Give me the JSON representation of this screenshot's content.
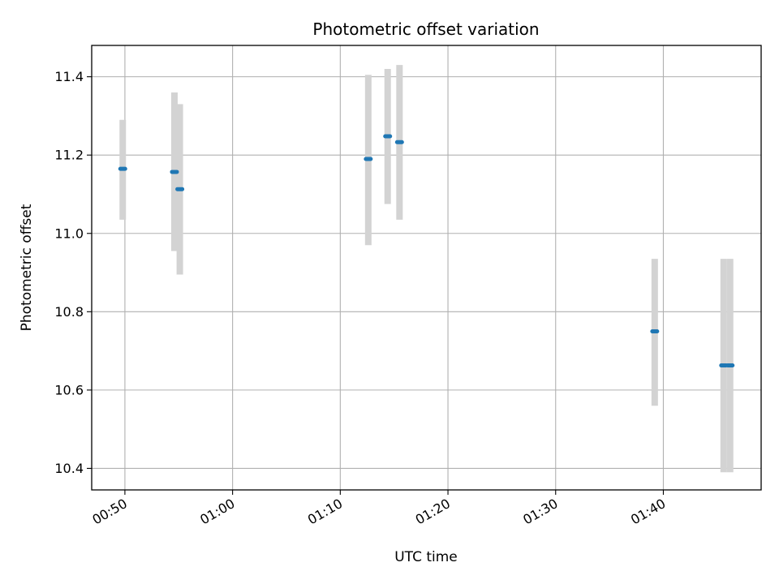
{
  "chart_data": {
    "type": "scatter",
    "title": "Photometric offset variation",
    "xlabel": "UTC time",
    "ylabel": "Photometric offset",
    "x_ticks": [
      "00:50",
      "01:00",
      "01:10",
      "01:20",
      "01:30",
      "01:40"
    ],
    "y_ticks": [
      "10.4",
      "10.6",
      "10.8",
      "11.0",
      "11.2",
      "11.4"
    ],
    "xlim": [
      "00:46:55",
      "01:49:05"
    ],
    "ylim": [
      10.345,
      11.48
    ],
    "grid": true,
    "series": [
      {
        "points": [
          {
            "x": "00:49:48",
            "y": 11.165,
            "ylow": 11.035,
            "yhigh": 11.29
          },
          {
            "x": "00:54:36",
            "y": 11.157,
            "ylow": 10.955,
            "yhigh": 11.36
          },
          {
            "x": "00:55:06",
            "y": 11.113,
            "ylow": 10.895,
            "yhigh": 11.33
          },
          {
            "x": "01:12:36",
            "y": 11.19,
            "ylow": 10.97,
            "yhigh": 11.405
          },
          {
            "x": "01:14:24",
            "y": 11.248,
            "ylow": 11.075,
            "yhigh": 11.42
          },
          {
            "x": "01:15:30",
            "y": 11.233,
            "ylow": 11.035,
            "yhigh": 11.43
          },
          {
            "x": "01:39:12",
            "y": 10.75,
            "ylow": 10.56,
            "yhigh": 10.935
          },
          {
            "x": "01:45:36",
            "y": 10.663,
            "ylow": 10.39,
            "yhigh": 10.935
          },
          {
            "x": "01:46:12",
            "y": 10.663,
            "ylow": 10.39,
            "yhigh": 10.935
          }
        ],
        "marker_color": "#1f77b4",
        "errorbar_color": "#d3d3d3"
      }
    ]
  }
}
